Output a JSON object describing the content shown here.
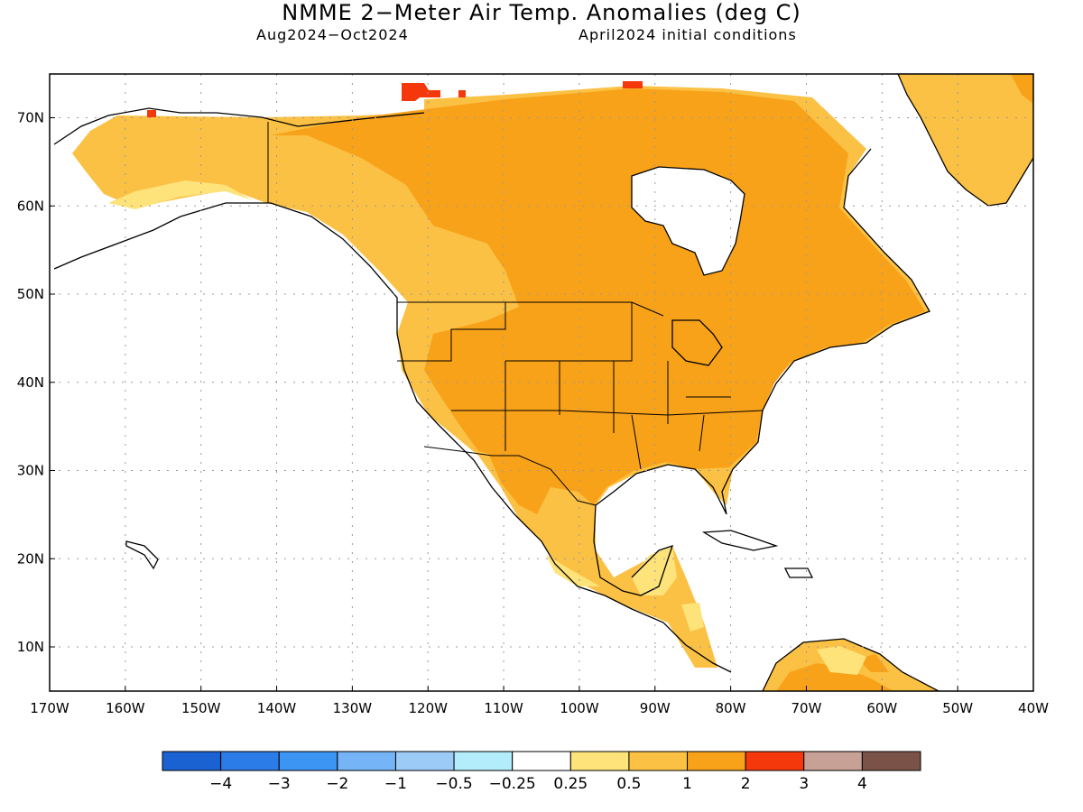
{
  "title": "NMME 2−Meter Air Temp. Anomalies (deg C)",
  "period": "Aug2024−Oct2024",
  "init": "April2024 initial conditions",
  "lat_labels": [
    "10N",
    "20N",
    "30N",
    "40N",
    "50N",
    "60N",
    "70N"
  ],
  "lon_labels": [
    "170W",
    "160W",
    "150W",
    "140W",
    "130W",
    "120W",
    "110W",
    "100W",
    "90W",
    "80W",
    "70W",
    "60W",
    "50W",
    "40W"
  ],
  "colorbar": {
    "colors": [
      "#1a62d2",
      "#2b7ce8",
      "#3c95f2",
      "#75b4f6",
      "#9dcbf7",
      "#b3ecfb",
      "#ffffff",
      "#fde37a",
      "#fbc144",
      "#f8a21a",
      "#f5380c",
      "#c7a196",
      "#7b5248"
    ],
    "labels": [
      "−4",
      "−3",
      "−2",
      "−1",
      "−0.5",
      "−0.25",
      "0.25",
      "0.5",
      "1",
      "2",
      "3",
      "4"
    ]
  },
  "anomaly_colors": {
    "weak": "#fde37a",
    "moderate": "#fbc144",
    "strong": "#f8a21a",
    "extreme": "#f5380c"
  }
}
